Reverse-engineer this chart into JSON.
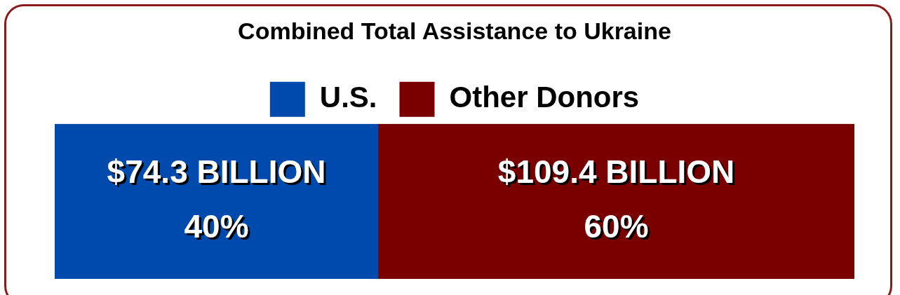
{
  "chart_data": {
    "type": "bar",
    "title": "Combined Total Assistance to Ukraine",
    "orientation": "horizontal",
    "stacked": true,
    "legend": "top",
    "categories": [
      null
    ],
    "series": [
      {
        "name": "U.S.",
        "color": "#004aad",
        "values": [
          74.3
        ],
        "value_labels": [
          "$74.3 BILLION\n40%"
        ]
      },
      {
        "name": "Other Donors",
        "color": "#7a0000",
        "values": [
          109.4
        ],
        "value_labels": [
          "$109.4 BILLION\n60%"
        ]
      }
    ]
  }
}
